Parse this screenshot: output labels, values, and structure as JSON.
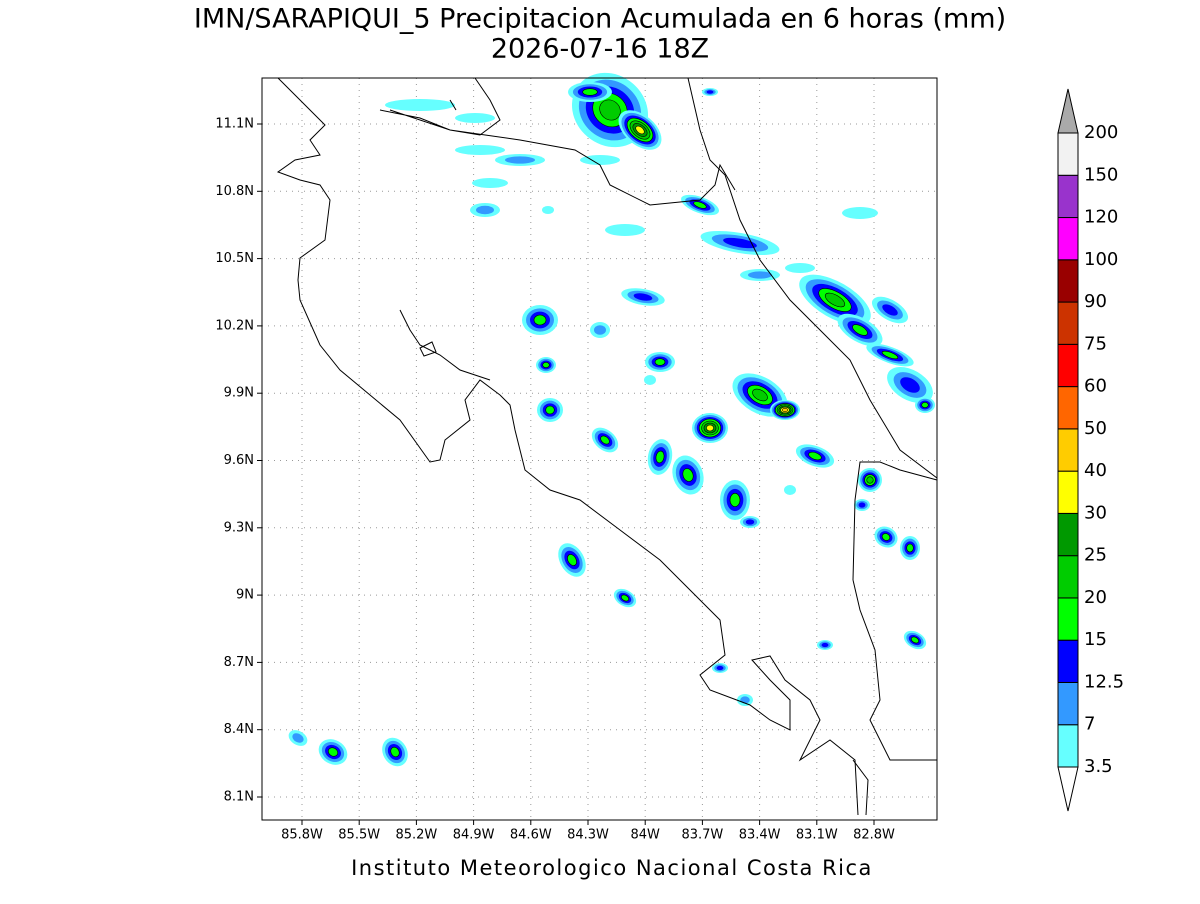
{
  "title": {
    "line1": "IMN/SARAPIQUI_5 Precipitacion Acumulada en 6 horas (mm)",
    "line2": "2026-07-16 18Z"
  },
  "map": {
    "lat_ticks": [
      {
        "value": 11.1,
        "label": "11.1N"
      },
      {
        "value": 10.8,
        "label": "10.8N"
      },
      {
        "value": 10.5,
        "label": "10.5N"
      },
      {
        "value": 10.2,
        "label": "10.2N"
      },
      {
        "value": 9.9,
        "label": "9.9N"
      },
      {
        "value": 9.6,
        "label": "9.6N"
      },
      {
        "value": 9.3,
        "label": "9.3N"
      },
      {
        "value": 9,
        "label": "9N"
      },
      {
        "value": 8.7,
        "label": "8.7N"
      },
      {
        "value": 8.4,
        "label": "8.4N"
      },
      {
        "value": 8.1,
        "label": "8.1N"
      }
    ],
    "lon_ticks": [
      {
        "value": 85.8,
        "label": "85.8W"
      },
      {
        "value": 85.5,
        "label": "85.5W"
      },
      {
        "value": 85.2,
        "label": "85.2W"
      },
      {
        "value": 84.9,
        "label": "84.9W"
      },
      {
        "value": 84.6,
        "label": "84.6W"
      },
      {
        "value": 84.3,
        "label": "84.3W"
      },
      {
        "value": 84,
        "label": "84W"
      },
      {
        "value": 83.7,
        "label": "83.7W"
      },
      {
        "value": 83.4,
        "label": "83.4W"
      },
      {
        "value": 83.1,
        "label": "83.1W"
      },
      {
        "value": 82.8,
        "label": "82.8W"
      }
    ],
    "grid": true
  },
  "colorbar": {
    "levels": [
      3.5,
      7,
      12.5,
      15,
      20,
      25,
      30,
      40,
      50,
      60,
      75,
      90,
      100,
      120,
      150,
      200
    ],
    "colors": [
      "#66ffff",
      "#3399ff",
      "#0000ff",
      "#00ff00",
      "#00cc00",
      "#009900",
      "#ffff00",
      "#ffcc00",
      "#ff6600",
      "#ff0000",
      "#cc3300",
      "#990000",
      "#ff00ff",
      "#9933cc",
      "#f2f2f2"
    ],
    "over_color": "#aaaaaa",
    "under_color": "#ffffff"
  },
  "footer": "Instituto Meteorologico Nacional Costa Rica"
}
